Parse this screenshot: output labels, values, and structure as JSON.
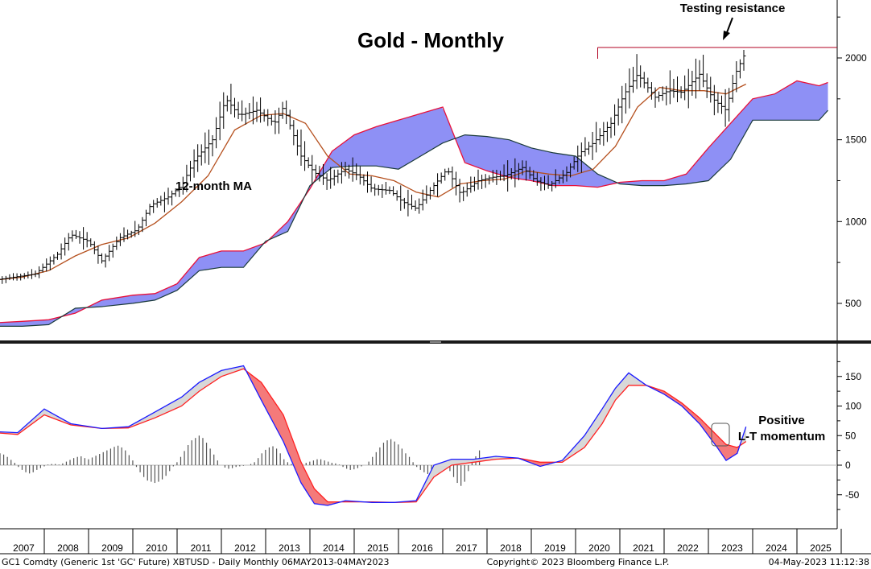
{
  "chart_data": [
    {
      "type": "ohlc",
      "title": "Gold - Monthly",
      "annotations": {
        "ma_label": "12-month MA",
        "resistance_label": "Testing resistance"
      },
      "y_ticks": [
        500,
        1000,
        1500,
        2000
      ],
      "ylim": [
        300,
        2400
      ],
      "resistance_level": 2064,
      "price_series": {
        "name": "Gold",
        "x": [
          2006.3,
          2006.8,
          2007.3,
          2007.8,
          2008.1,
          2008.5,
          2008.8,
          2009.2,
          2009.6,
          2009.9,
          2010.3,
          2010.6,
          2010.9,
          2011.3,
          2011.6,
          2011.9,
          2012.3,
          2012.7,
          2012.9,
          2013.3,
          2013.6,
          2013.9,
          2014.3,
          2014.6,
          2014.9,
          2015.3,
          2015.6,
          2015.9,
          2016.3,
          2016.6,
          2016.9,
          2017.3,
          2017.6,
          2017.9,
          2018.3,
          2018.6,
          2018.9,
          2019.3,
          2019.6,
          2019.9,
          2020.3,
          2020.6,
          2020.9,
          2021.3,
          2021.6,
          2021.9,
          2022.3,
          2022.6,
          2022.9,
          2023.1,
          2023.35
        ],
        "y": [
          640,
          660,
          680,
          800,
          920,
          880,
          760,
          900,
          950,
          1100,
          1150,
          1220,
          1380,
          1500,
          1750,
          1650,
          1680,
          1600,
          1700,
          1400,
          1300,
          1250,
          1320,
          1280,
          1200,
          1190,
          1120,
          1080,
          1220,
          1320,
          1170,
          1250,
          1270,
          1280,
          1330,
          1250,
          1220,
          1300,
          1420,
          1480,
          1600,
          1780,
          1900,
          1760,
          1800,
          1790,
          1900,
          1750,
          1680,
          1900,
          2040
        ]
      },
      "ma_series": {
        "name": "12-month MA",
        "x": [
          2006.3,
          2007.0,
          2007.6,
          2008.2,
          2008.8,
          2009.4,
          2010.0,
          2010.6,
          2011.2,
          2011.8,
          2012.4,
          2012.9,
          2013.4,
          2013.9,
          2014.4,
          2014.9,
          2015.4,
          2015.9,
          2016.4,
          2016.9,
          2017.4,
          2017.9,
          2018.4,
          2018.9,
          2019.4,
          2019.9,
          2020.4,
          2020.9,
          2021.4,
          2021.9,
          2022.4,
          2022.9,
          2023.35
        ],
        "y": [
          640,
          660,
          700,
          790,
          860,
          900,
          990,
          1120,
          1280,
          1560,
          1650,
          1660,
          1600,
          1400,
          1290,
          1280,
          1250,
          1180,
          1150,
          1230,
          1250,
          1260,
          1310,
          1290,
          1280,
          1320,
          1460,
          1700,
          1820,
          1800,
          1800,
          1780,
          1840
        ]
      },
      "cloud_span_a": {
        "x": [
          2006.3,
          2007.0,
          2007.6,
          2008.2,
          2008.8,
          2009.5,
          2010.0,
          2010.5,
          2011.0,
          2011.5,
          2012.0,
          2012.5,
          2013.0,
          2013.5,
          2014.0,
          2014.5,
          2015.0,
          2015.5,
          2016.0,
          2016.5,
          2017.0,
          2017.5,
          2018.0,
          2018.5,
          2019.0,
          2019.5,
          2020.0,
          2020.5,
          2021.0,
          2021.5,
          2022.0,
          2022.5,
          2023.0,
          2023.5,
          2024.0,
          2024.5,
          2025.0,
          2025.2
        ],
        "y": [
          380,
          390,
          400,
          440,
          520,
          550,
          560,
          620,
          780,
          820,
          820,
          870,
          1000,
          1200,
          1430,
          1530,
          1580,
          1620,
          1660,
          1700,
          1360,
          1310,
          1270,
          1250,
          1220,
          1220,
          1210,
          1240,
          1250,
          1250,
          1290,
          1450,
          1600,
          1750,
          1780,
          1860,
          1830,
          1850
        ]
      },
      "cloud_span_b": {
        "x": [
          2006.3,
          2007.0,
          2007.6,
          2008.2,
          2008.8,
          2009.5,
          2010.0,
          2010.5,
          2011.0,
          2011.5,
          2012.0,
          2012.5,
          2013.0,
          2013.5,
          2014.0,
          2014.5,
          2015.0,
          2015.5,
          2016.0,
          2016.5,
          2017.0,
          2017.5,
          2018.0,
          2018.5,
          2019.0,
          2019.5,
          2020.0,
          2020.5,
          2021.0,
          2021.5,
          2022.0,
          2022.5,
          2023.0,
          2023.5,
          2024.0,
          2024.5,
          2025.0,
          2025.2
        ],
        "y": [
          360,
          360,
          370,
          470,
          480,
          500,
          520,
          580,
          700,
          720,
          720,
          880,
          940,
          1220,
          1330,
          1340,
          1340,
          1320,
          1400,
          1480,
          1530,
          1520,
          1500,
          1450,
          1420,
          1400,
          1290,
          1230,
          1220,
          1220,
          1230,
          1250,
          1380,
          1620,
          1620,
          1620,
          1620,
          1680
        ]
      }
    },
    {
      "type": "line",
      "y_ticks": [
        -50,
        0,
        50,
        100,
        150
      ],
      "ylim": [
        -85,
        190
      ],
      "x_ticks": [
        "2007",
        "2008",
        "2009",
        "2010",
        "2011",
        "2012",
        "2013",
        "2014",
        "2015",
        "2016",
        "2017",
        "2018",
        "2019",
        "2020",
        "2021",
        "2022",
        "2023",
        "2024",
        "2025"
      ],
      "annotation": "Positive\nL-T momentum",
      "fast_series": {
        "x": [
          2006.0,
          2006.9,
          2007.5,
          2008.1,
          2008.8,
          2009.4,
          2010.0,
          2010.6,
          2011.0,
          2011.5,
          2012.0,
          2012.4,
          2012.9,
          2013.3,
          2013.6,
          2013.9,
          2014.3,
          2014.9,
          2015.4,
          2015.9,
          2016.3,
          2016.7,
          2017.2,
          2017.7,
          2018.2,
          2018.7,
          2019.2,
          2019.7,
          2020.1,
          2020.4,
          2020.7,
          2021.1,
          2021.5,
          2021.9,
          2022.3,
          2022.7,
          2022.9,
          2023.15,
          2023.35
        ],
        "y": [
          58,
          55,
          95,
          70,
          62,
          65,
          90,
          115,
          140,
          160,
          168,
          110,
          40,
          -30,
          -65,
          -68,
          -60,
          -63,
          -63,
          -60,
          0,
          10,
          10,
          15,
          12,
          -2,
          8,
          50,
          95,
          130,
          156,
          135,
          120,
          100,
          70,
          30,
          8,
          20,
          65
        ]
      },
      "slow_series": {
        "x": [
          2006.0,
          2006.9,
          2007.5,
          2008.1,
          2008.8,
          2009.4,
          2010.0,
          2010.6,
          2011.0,
          2011.5,
          2012.0,
          2012.4,
          2012.9,
          2013.3,
          2013.6,
          2013.9,
          2014.3,
          2014.9,
          2015.4,
          2015.9,
          2016.3,
          2016.7,
          2017.2,
          2017.7,
          2018.2,
          2018.7,
          2019.2,
          2019.7,
          2020.1,
          2020.4,
          2020.7,
          2021.1,
          2021.5,
          2021.9,
          2022.3,
          2022.7,
          2022.9,
          2023.15,
          2023.35
        ],
        "y": [
          57,
          52,
          85,
          68,
          62,
          63,
          80,
          100,
          125,
          150,
          163,
          140,
          85,
          5,
          -40,
          -62,
          -62,
          -62,
          -63,
          -62,
          -20,
          0,
          5,
          10,
          12,
          5,
          5,
          30,
          70,
          110,
          135,
          135,
          125,
          105,
          80,
          50,
          35,
          30,
          40
        ]
      },
      "histogram": {
        "x_start": 2006.0,
        "x_step": 0.0833,
        "values": [
          1,
          3,
          7,
          10,
          14,
          18,
          20,
          18,
          14,
          9,
          4,
          -3,
          -8,
          -12,
          -14,
          -12,
          -8,
          -5,
          -2,
          1,
          2,
          2,
          1,
          3,
          6,
          9,
          12,
          14,
          15,
          12,
          10,
          13,
          16,
          19,
          22,
          25,
          28,
          31,
          33,
          30,
          25,
          17,
          8,
          -3,
          -12,
          -20,
          -26,
          -28,
          -30,
          -28,
          -24,
          -18,
          -10,
          -2,
          5,
          14,
          24,
          34,
          42,
          46,
          50,
          46,
          38,
          28,
          18,
          8,
          0,
          -4,
          -6,
          -5,
          -3,
          -2,
          -1,
          0,
          2,
          5,
          12,
          20,
          26,
          30,
          32,
          28,
          20,
          10,
          5,
          2,
          1,
          0,
          2,
          4,
          6,
          8,
          10,
          10,
          8,
          6,
          4,
          3,
          1,
          -3,
          -6,
          -8,
          -7,
          -5,
          -2,
          0,
          6,
          14,
          22,
          30,
          38,
          42,
          44,
          40,
          35,
          28,
          20,
          14,
          5,
          -3,
          -8,
          -12,
          -15,
          -16,
          -15,
          -12,
          -8,
          -5,
          -10,
          -20,
          -30,
          -35,
          -28,
          -10,
          5,
          15,
          25
        ]
      }
    }
  ],
  "footer": {
    "left": "GC1 Comdty (Generic 1st 'GC' Future) XBTUSD - Daily  Monthly 06MAY2013-04MAY2023",
    "center": "Copyright© 2023 Bloomberg Finance L.P.",
    "right": "04-May-2023 11:12:38"
  },
  "colors": {
    "cloud_fill": "#8e90f5",
    "cloud_red_edge": "#e8103a",
    "cloud_dark_edge": "#1a3a3a",
    "ma_line": "#b5501e",
    "fast_line": "#1a1aff",
    "slow_line": "#ff2020",
    "fill_bull": "#d8d8d8",
    "fill_bear": "#f47a7a",
    "hist": "#555555",
    "resistance": "#b00020"
  }
}
